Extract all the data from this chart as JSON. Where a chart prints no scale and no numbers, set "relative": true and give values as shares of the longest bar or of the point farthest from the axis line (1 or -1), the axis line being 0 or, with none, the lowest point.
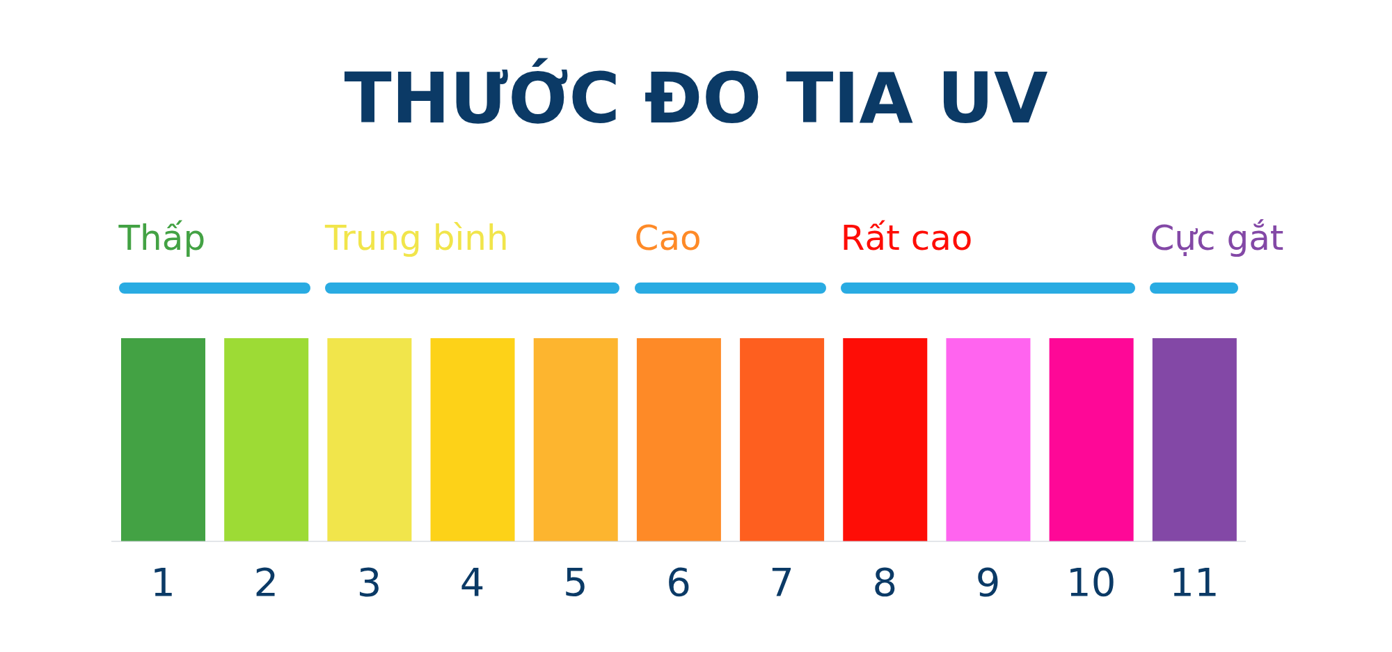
{
  "chart_data": {
    "type": "bar",
    "title": "THƯỚC ĐO TIA UV",
    "relative": true,
    "categories": [
      "1",
      "2",
      "3",
      "4",
      "5",
      "6",
      "7",
      "8",
      "9",
      "10",
      "11"
    ],
    "values": [
      1,
      1,
      1,
      1,
      1,
      1,
      1,
      1,
      1,
      1,
      1
    ],
    "colors": [
      "#43a244",
      "#9ddb35",
      "#f1e54b",
      "#fdd218",
      "#fdb52f",
      "#fe8a27",
      "#fe5f1f",
      "#fe0d06",
      "#ff64ef",
      "#fe0897",
      "#8348a6"
    ],
    "annotations": [
      "Thấp",
      "Trung bình",
      "Cao",
      "Rất cao",
      "Cực gắt"
    ]
  }
}
